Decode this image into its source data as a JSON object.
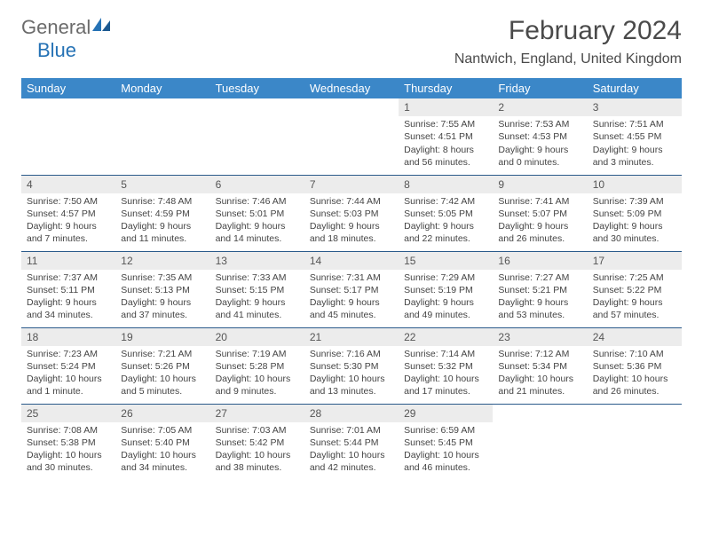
{
  "logo": {
    "general": "General",
    "blue": "Blue"
  },
  "title": "February 2024",
  "location": "Nantwich, England, United Kingdom",
  "colors": {
    "header_bg": "#3b87c8",
    "daynum_bg": "#ececec",
    "rule": "#2a5a8a",
    "logo_gray": "#6b6b6b",
    "logo_blue": "#2572b5"
  },
  "dayNames": [
    "Sunday",
    "Monday",
    "Tuesday",
    "Wednesday",
    "Thursday",
    "Friday",
    "Saturday"
  ],
  "startOffset": 4,
  "days": [
    {
      "n": 1,
      "sr": "7:55 AM",
      "ss": "4:51 PM",
      "dl": "8 hours and 56 minutes."
    },
    {
      "n": 2,
      "sr": "7:53 AM",
      "ss": "4:53 PM",
      "dl": "9 hours and 0 minutes."
    },
    {
      "n": 3,
      "sr": "7:51 AM",
      "ss": "4:55 PM",
      "dl": "9 hours and 3 minutes."
    },
    {
      "n": 4,
      "sr": "7:50 AM",
      "ss": "4:57 PM",
      "dl": "9 hours and 7 minutes."
    },
    {
      "n": 5,
      "sr": "7:48 AM",
      "ss": "4:59 PM",
      "dl": "9 hours and 11 minutes."
    },
    {
      "n": 6,
      "sr": "7:46 AM",
      "ss": "5:01 PM",
      "dl": "9 hours and 14 minutes."
    },
    {
      "n": 7,
      "sr": "7:44 AM",
      "ss": "5:03 PM",
      "dl": "9 hours and 18 minutes."
    },
    {
      "n": 8,
      "sr": "7:42 AM",
      "ss": "5:05 PM",
      "dl": "9 hours and 22 minutes."
    },
    {
      "n": 9,
      "sr": "7:41 AM",
      "ss": "5:07 PM",
      "dl": "9 hours and 26 minutes."
    },
    {
      "n": 10,
      "sr": "7:39 AM",
      "ss": "5:09 PM",
      "dl": "9 hours and 30 minutes."
    },
    {
      "n": 11,
      "sr": "7:37 AM",
      "ss": "5:11 PM",
      "dl": "9 hours and 34 minutes."
    },
    {
      "n": 12,
      "sr": "7:35 AM",
      "ss": "5:13 PM",
      "dl": "9 hours and 37 minutes."
    },
    {
      "n": 13,
      "sr": "7:33 AM",
      "ss": "5:15 PM",
      "dl": "9 hours and 41 minutes."
    },
    {
      "n": 14,
      "sr": "7:31 AM",
      "ss": "5:17 PM",
      "dl": "9 hours and 45 minutes."
    },
    {
      "n": 15,
      "sr": "7:29 AM",
      "ss": "5:19 PM",
      "dl": "9 hours and 49 minutes."
    },
    {
      "n": 16,
      "sr": "7:27 AM",
      "ss": "5:21 PM",
      "dl": "9 hours and 53 minutes."
    },
    {
      "n": 17,
      "sr": "7:25 AM",
      "ss": "5:22 PM",
      "dl": "9 hours and 57 minutes."
    },
    {
      "n": 18,
      "sr": "7:23 AM",
      "ss": "5:24 PM",
      "dl": "10 hours and 1 minute."
    },
    {
      "n": 19,
      "sr": "7:21 AM",
      "ss": "5:26 PM",
      "dl": "10 hours and 5 minutes."
    },
    {
      "n": 20,
      "sr": "7:19 AM",
      "ss": "5:28 PM",
      "dl": "10 hours and 9 minutes."
    },
    {
      "n": 21,
      "sr": "7:16 AM",
      "ss": "5:30 PM",
      "dl": "10 hours and 13 minutes."
    },
    {
      "n": 22,
      "sr": "7:14 AM",
      "ss": "5:32 PM",
      "dl": "10 hours and 17 minutes."
    },
    {
      "n": 23,
      "sr": "7:12 AM",
      "ss": "5:34 PM",
      "dl": "10 hours and 21 minutes."
    },
    {
      "n": 24,
      "sr": "7:10 AM",
      "ss": "5:36 PM",
      "dl": "10 hours and 26 minutes."
    },
    {
      "n": 25,
      "sr": "7:08 AM",
      "ss": "5:38 PM",
      "dl": "10 hours and 30 minutes."
    },
    {
      "n": 26,
      "sr": "7:05 AM",
      "ss": "5:40 PM",
      "dl": "10 hours and 34 minutes."
    },
    {
      "n": 27,
      "sr": "7:03 AM",
      "ss": "5:42 PM",
      "dl": "10 hours and 38 minutes."
    },
    {
      "n": 28,
      "sr": "7:01 AM",
      "ss": "5:44 PM",
      "dl": "10 hours and 42 minutes."
    },
    {
      "n": 29,
      "sr": "6:59 AM",
      "ss": "5:45 PM",
      "dl": "10 hours and 46 minutes."
    }
  ],
  "labels": {
    "sunrise": "Sunrise:",
    "sunset": "Sunset:",
    "daylight": "Daylight:"
  }
}
